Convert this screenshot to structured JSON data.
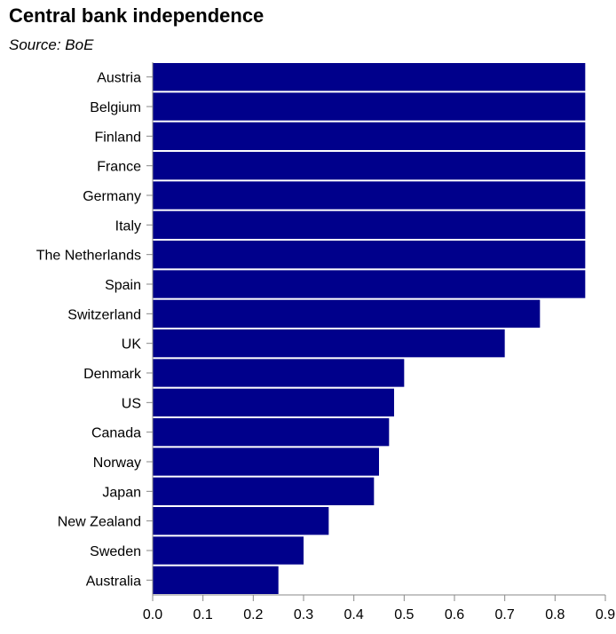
{
  "chart_data": {
    "type": "bar",
    "orientation": "horizontal",
    "title": "Central bank independence",
    "subtitle": "Source: BoE",
    "xlabel": "",
    "ylabel": "",
    "xlim": [
      0,
      0.9
    ],
    "x_ticks": [
      "0.0",
      "0.1",
      "0.2",
      "0.3",
      "0.4",
      "0.5",
      "0.6",
      "0.7",
      "0.8",
      "0.9"
    ],
    "grid": false,
    "bar_color": "#00008b",
    "categories": [
      "Austria",
      "Belgium",
      "Finland",
      "France",
      "Germany",
      "Italy",
      "The Netherlands",
      "Spain",
      "Switzerland",
      "UK",
      "Denmark",
      "US",
      "Canada",
      "Norway",
      "Japan",
      "New Zealand",
      "Sweden",
      "Australia"
    ],
    "values": [
      0.86,
      0.86,
      0.86,
      0.86,
      0.86,
      0.86,
      0.86,
      0.86,
      0.77,
      0.7,
      0.5,
      0.48,
      0.47,
      0.45,
      0.44,
      0.35,
      0.3,
      0.25
    ]
  }
}
